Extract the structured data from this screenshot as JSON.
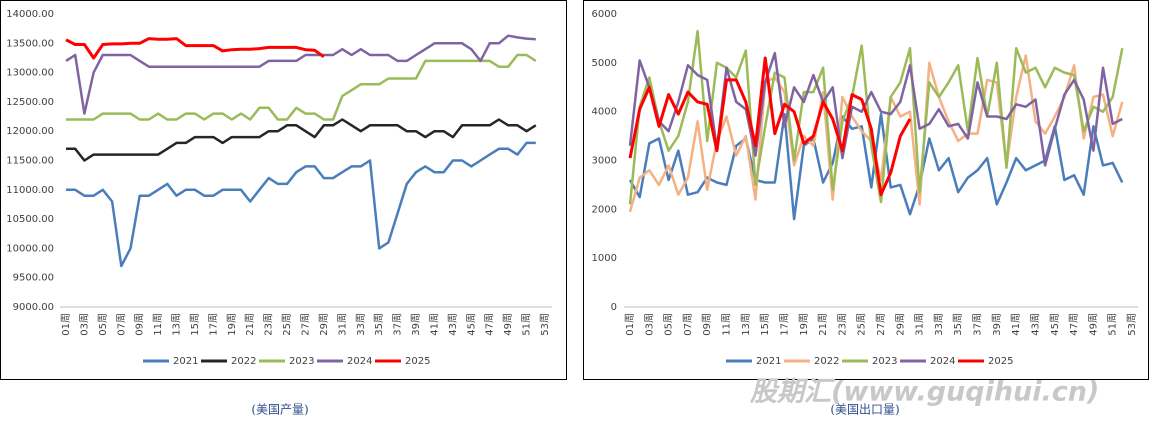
{
  "chart_data": [
    {
      "type": "line",
      "caption": "(美国产量)",
      "categories": [
        "01周",
        null,
        "03周",
        null,
        "05周",
        null,
        "07周",
        null,
        "09周",
        null,
        "11周",
        null,
        "13周",
        null,
        "15周",
        null,
        "17周",
        null,
        "19周",
        null,
        "21周",
        null,
        "23周",
        null,
        "25周",
        null,
        "27周",
        null,
        "29周",
        null,
        "31周",
        null,
        "33周",
        null,
        "35周",
        null,
        "37周",
        null,
        "39周",
        null,
        "41周",
        null,
        "43周",
        null,
        "45周",
        null,
        "47周",
        null,
        "49周",
        null,
        "51周",
        null,
        "53周"
      ],
      "ylim": [
        9000,
        14000
      ],
      "yticks": [
        {
          "value": 9000,
          "label": "9000.00"
        },
        {
          "value": 9500,
          "label": "9500.00"
        },
        {
          "value": 10000,
          "label": "10000.00"
        },
        {
          "value": 10500,
          "label": "10500.00"
        },
        {
          "value": 11000,
          "label": "11000.00"
        },
        {
          "value": 11500,
          "label": "11500.00"
        },
        {
          "value": 12000,
          "label": "12000.00"
        },
        {
          "value": 12500,
          "label": "12500.00"
        },
        {
          "value": 13000,
          "label": "13000.00"
        },
        {
          "value": 13500,
          "label": "13500.00"
        },
        {
          "value": 14000,
          "label": "14000.00"
        }
      ],
      "grid": false,
      "legend": "bottom",
      "series": [
        {
          "name": "2021",
          "color": "#4a7ebb",
          "values": [
            11000,
            11000,
            10900,
            10900,
            11000,
            10800,
            9700,
            10000,
            10900,
            10900,
            11000,
            11100,
            10900,
            11000,
            11000,
            10900,
            10900,
            11000,
            11000,
            11000,
            10800,
            11000,
            11200,
            11100,
            11100,
            11300,
            11400,
            11400,
            11200,
            11200,
            11300,
            11400,
            11400,
            11500,
            10000,
            10100,
            10600,
            11100,
            11300,
            11400,
            11300,
            11300,
            11500,
            11500,
            11400,
            11500,
            11600,
            11700,
            11700,
            11600,
            11800,
            11800,
            null
          ]
        },
        {
          "name": "2022",
          "color": "#262626",
          "values": [
            11700,
            11700,
            11500,
            11600,
            11600,
            11600,
            11600,
            11600,
            11600,
            11600,
            11600,
            11700,
            11800,
            11800,
            11900,
            11900,
            11900,
            11800,
            11900,
            11900,
            11900,
            11900,
            12000,
            12000,
            12100,
            12100,
            12000,
            11900,
            12100,
            12100,
            12200,
            12100,
            12000,
            12100,
            12100,
            12100,
            12100,
            12000,
            12000,
            11900,
            12000,
            12000,
            11900,
            12100,
            12100,
            12100,
            12100,
            12200,
            12100,
            12100,
            12000,
            12100,
            null
          ]
        },
        {
          "name": "2023",
          "color": "#9bbb59",
          "values": [
            12200,
            12200,
            12200,
            12200,
            12300,
            12300,
            12300,
            12300,
            12200,
            12200,
            12300,
            12200,
            12200,
            12300,
            12300,
            12200,
            12300,
            12300,
            12200,
            12300,
            12200,
            12400,
            12400,
            12200,
            12200,
            12400,
            12300,
            12300,
            12200,
            12200,
            12600,
            12700,
            12800,
            12800,
            12800,
            12900,
            12900,
            12900,
            12900,
            13200,
            13200,
            13200,
            13200,
            13200,
            13200,
            13200,
            13200,
            13100,
            13100,
            13300,
            13300,
            13200,
            null
          ]
        },
        {
          "name": "2024",
          "color": "#8064a2",
          "values": [
            13200,
            13300,
            12300,
            13000,
            13300,
            13300,
            13300,
            13300,
            13200,
            13100,
            13100,
            13100,
            13100,
            13100,
            13100,
            13100,
            13100,
            13100,
            13100,
            13100,
            13100,
            13100,
            13200,
            13200,
            13200,
            13200,
            13300,
            13300,
            13300,
            13300,
            13400,
            13300,
            13400,
            13300,
            13300,
            13300,
            13200,
            13200,
            13300,
            13400,
            13500,
            13500,
            13500,
            13500,
            13400,
            13200,
            13500,
            13500,
            13630,
            13600,
            13580,
            13570,
            null
          ]
        },
        {
          "name": "2025",
          "color": "#ff0000",
          "values": [
            13560,
            13480,
            13480,
            13250,
            13480,
            13490,
            13490,
            13500,
            13500,
            13580,
            13570,
            13570,
            13580,
            13460,
            13460,
            13460,
            13460,
            13370,
            13390,
            13400,
            13400,
            13410,
            13430,
            13430,
            13430,
            13430,
            13390,
            13380,
            13270,
            null,
            null,
            null,
            null,
            null,
            null,
            null,
            null,
            null,
            null,
            null,
            null,
            null,
            null,
            null,
            null,
            null,
            null,
            null,
            null,
            null,
            null,
            null,
            null
          ]
        }
      ]
    },
    {
      "type": "line",
      "caption": "(美国出口量)",
      "categories": [
        "01周",
        null,
        "03周",
        null,
        "05周",
        null,
        "07周",
        null,
        "09周",
        null,
        "11周",
        null,
        "13周",
        null,
        "15周",
        null,
        "17周",
        null,
        "19周",
        null,
        "21周",
        null,
        "23周",
        null,
        "25周",
        null,
        "27周",
        null,
        "29周",
        null,
        "31周",
        null,
        "33周",
        null,
        "35周",
        null,
        "37周",
        null,
        "39周",
        null,
        "41周",
        null,
        "43周",
        null,
        "45周",
        null,
        "47周",
        null,
        "49周",
        null,
        "51周",
        null,
        "53周"
      ],
      "ylim": [
        0,
        6000
      ],
      "yticks": [
        0,
        1000,
        2000,
        3000,
        4000,
        5000,
        6000
      ],
      "grid": false,
      "legend": "bottom",
      "series": [
        {
          "name": "2021",
          "color": "#4a7ebb",
          "values": [
            2600,
            2250,
            3350,
            3450,
            2600,
            3200,
            2300,
            2350,
            2650,
            2550,
            2500,
            3300,
            3450,
            2600,
            2550,
            2550,
            3950,
            1800,
            3300,
            3450,
            2550,
            2950,
            3900,
            3650,
            3700,
            2450,
            3950,
            2450,
            2500,
            1900,
            2500,
            3450,
            2800,
            3050,
            2350,
            2650,
            2800,
            3050,
            2100,
            2550,
            3050,
            2800,
            2900,
            3000,
            3700,
            2600,
            2700,
            2300,
            3700,
            2900,
            2950,
            2550,
            null
          ]
        },
        {
          "name": "2022",
          "color": "#f4b183",
          "values": [
            1950,
            2650,
            2800,
            2500,
            2900,
            2300,
            2650,
            3800,
            2400,
            3400,
            3900,
            3100,
            3500,
            2200,
            4600,
            4700,
            4400,
            2900,
            3500,
            3300,
            4400,
            2200,
            4300,
            3900,
            3600,
            3400,
            2600,
            4300,
            3900,
            4000,
            2100,
            5000,
            4300,
            3800,
            3400,
            3550,
            3550,
            4650,
            4600,
            2900,
            4300,
            5150,
            3800,
            3550,
            3900,
            4300,
            4950,
            3450,
            4300,
            4350,
            3500,
            4200,
            null
          ]
        },
        {
          "name": "2023",
          "color": "#9bbb59",
          "values": [
            2100,
            4100,
            4700,
            3800,
            3200,
            3500,
            4200,
            5650,
            3400,
            5000,
            4900,
            4700,
            5250,
            2500,
            3700,
            4800,
            4700,
            3000,
            4400,
            4400,
            4900,
            2400,
            3800,
            4300,
            5350,
            3300,
            2150,
            4300,
            4600,
            5300,
            2350,
            4600,
            4300,
            4600,
            4950,
            3600,
            5100,
            3900,
            5000,
            2850,
            5300,
            4800,
            4900,
            4500,
            4900,
            4800,
            4750,
            3600,
            4100,
            4000,
            4300,
            5300,
            null
          ]
        },
        {
          "name": "2024",
          "color": "#8064a2",
          "values": [
            3300,
            5050,
            4500,
            3800,
            3600,
            4200,
            4950,
            4750,
            4650,
            3250,
            4900,
            4200,
            4050,
            3100,
            4600,
            5200,
            3700,
            4500,
            4200,
            4750,
            4200,
            4500,
            3050,
            4100,
            4000,
            4400,
            4000,
            3950,
            4200,
            4950,
            3650,
            3750,
            4050,
            3700,
            3750,
            3450,
            4600,
            3900,
            3900,
            3850,
            4150,
            4100,
            4250,
            2900,
            3650,
            4350,
            4650,
            4250,
            3200,
            4900,
            3750,
            3850,
            null
          ]
        },
        {
          "name": "2025",
          "color": "#ff0000",
          "values": [
            3050,
            4050,
            4500,
            3700,
            4350,
            3950,
            4400,
            4200,
            4150,
            3200,
            4650,
            4650,
            4200,
            3300,
            5100,
            3550,
            4150,
            4000,
            3350,
            3500,
            4200,
            3850,
            3200,
            4350,
            4250,
            3650,
            2300,
            2750,
            3500,
            3850,
            null,
            null,
            null,
            null,
            null,
            null,
            null,
            null,
            null,
            null,
            null,
            null,
            null,
            null,
            null,
            null,
            null,
            null,
            null,
            null,
            null,
            null,
            null
          ]
        }
      ]
    }
  ],
  "watermark": "股期汇(www.guqihui.cn)"
}
